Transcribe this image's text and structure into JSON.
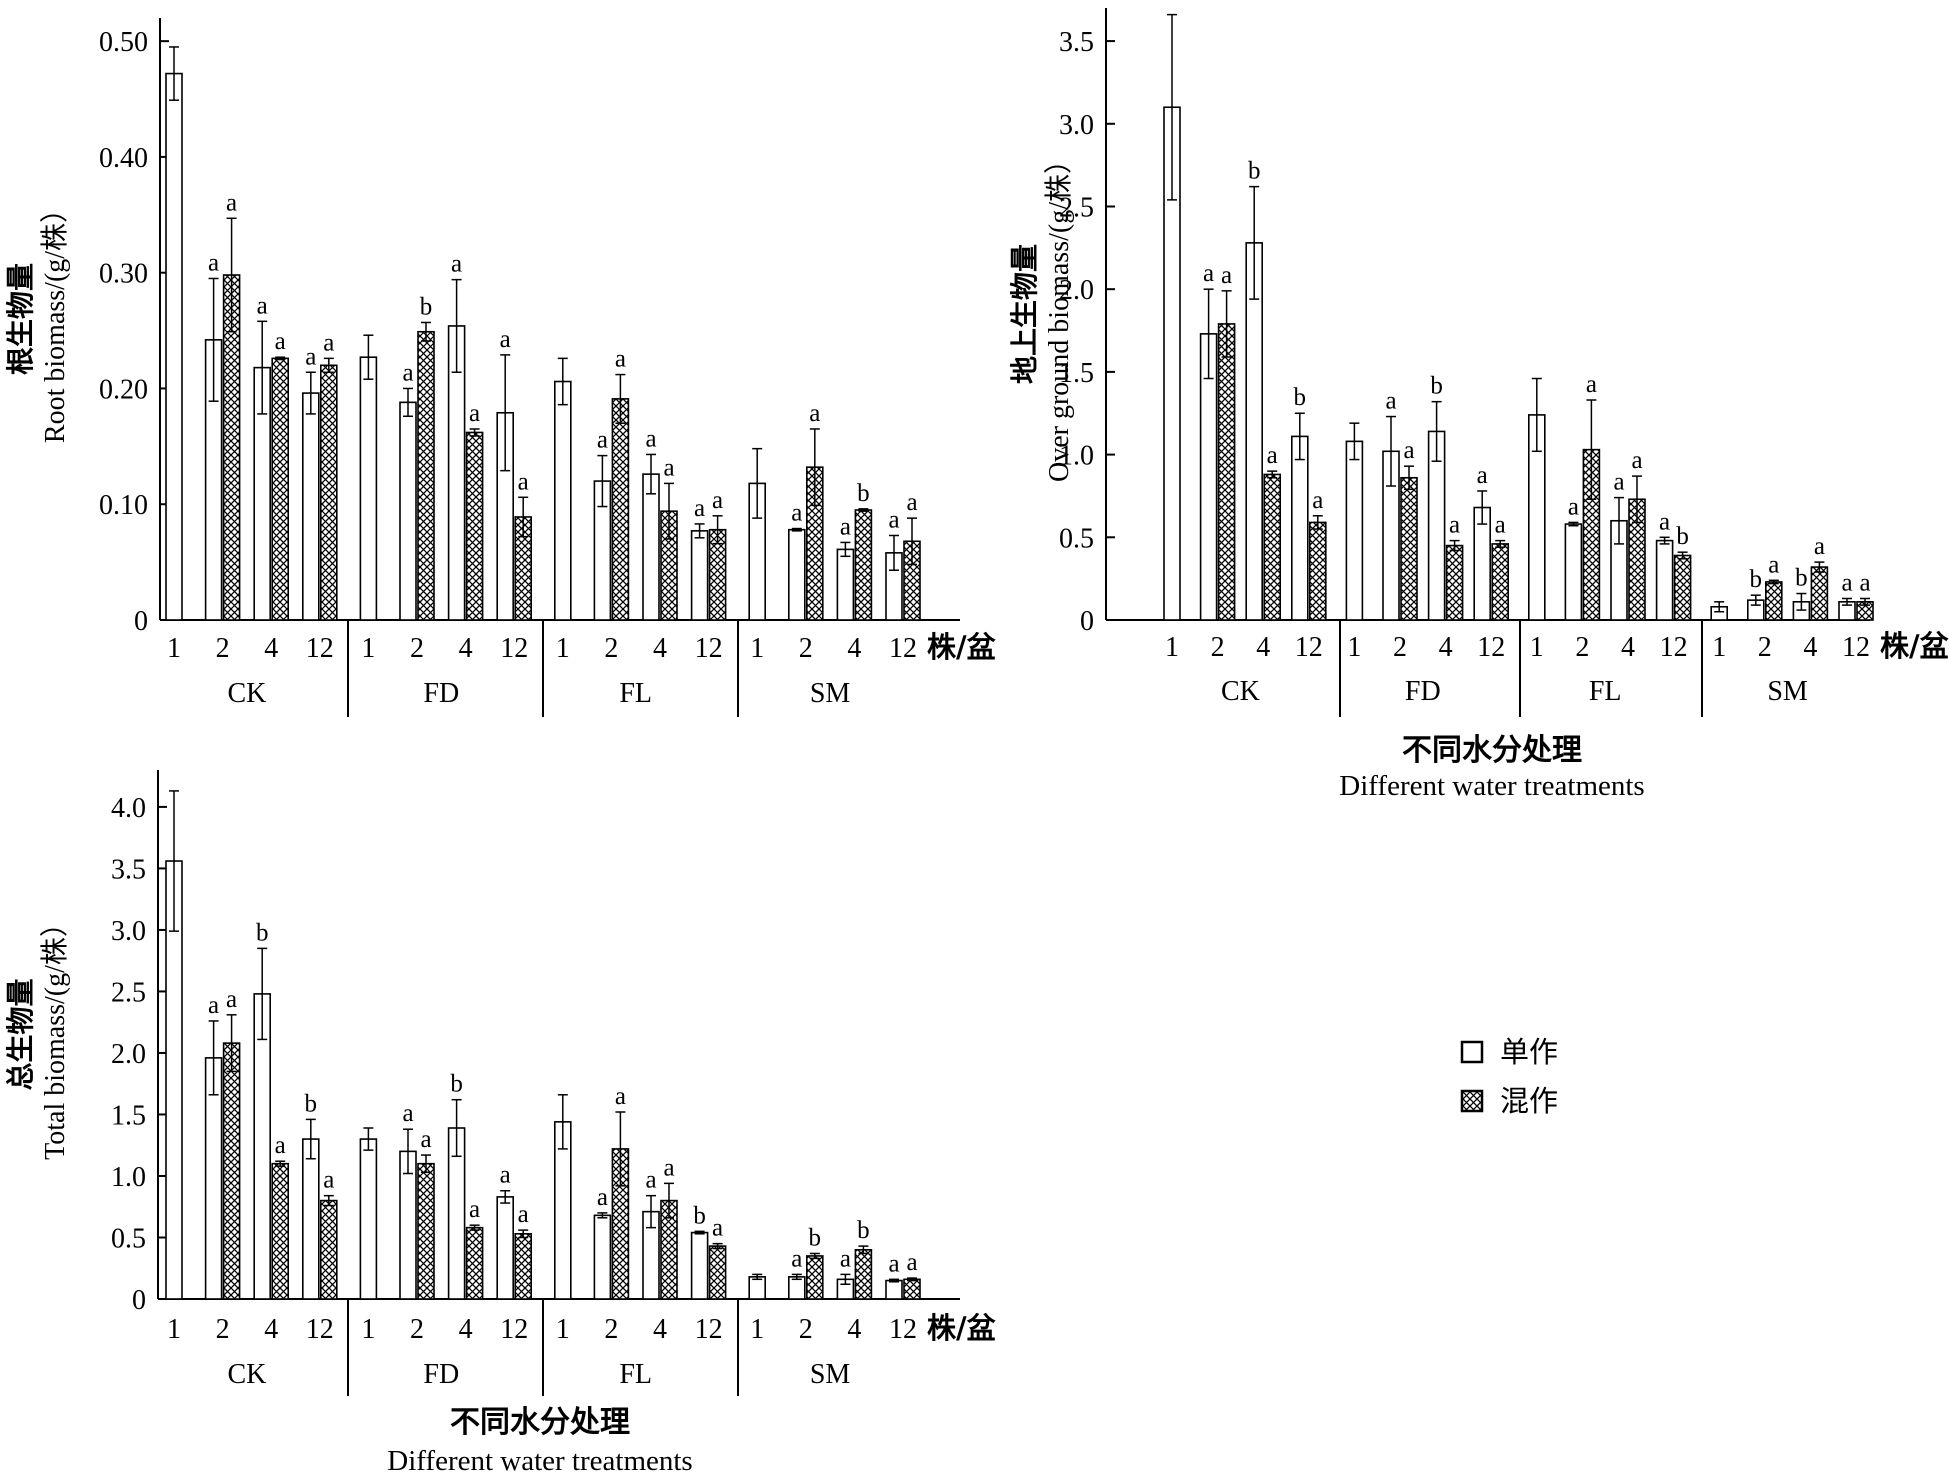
{
  "colors": {
    "axis": "#000000",
    "mono_fill": "#ffffff",
    "mix_pattern": "crosshatch"
  },
  "legend": {
    "mono": "单作",
    "mix": "混作"
  },
  "chart_data": [
    {
      "type": "bar",
      "ylabel_cn": "根生物量",
      "ylabel_en": "Root biomass/(g/株）",
      "ylim": [
        0,
        0.52
      ],
      "yticks": [
        0,
        0.1,
        0.2,
        0.3,
        0.4,
        0.5
      ],
      "ytick_labels": [
        "0",
        "0.10",
        "0.20",
        "0.30",
        "0.40",
        "0.50"
      ],
      "groups": [
        "CK",
        "FD",
        "FL",
        "SM"
      ],
      "densities": [
        "1",
        "2",
        "4",
        "12"
      ],
      "density_unit": "株/盆",
      "xlabel_cn": "",
      "xlabel_en": "",
      "series": [
        {
          "name": "单作",
          "values": [
            0.472,
            0.242,
            0.218,
            0.196,
            0.227,
            0.188,
            0.254,
            0.179,
            0.206,
            0.12,
            0.126,
            0.077,
            0.118,
            0.078,
            0.061,
            0.058
          ],
          "errors": [
            0.023,
            0.053,
            0.04,
            0.018,
            0.019,
            0.012,
            0.04,
            0.05,
            0.02,
            0.022,
            0.017,
            0.006,
            0.03,
            0.001,
            0.006,
            0.015
          ],
          "labels": [
            "",
            "a",
            "a",
            "a",
            "",
            "a",
            "a",
            "a",
            "",
            "a",
            "a",
            "a",
            "",
            "a",
            "a",
            "a"
          ]
        },
        {
          "name": "混作",
          "values": [
            null,
            0.298,
            0.226,
            0.22,
            null,
            0.249,
            0.162,
            0.089,
            null,
            0.191,
            0.094,
            0.078,
            null,
            0.132,
            0.095,
            0.068
          ],
          "errors": [
            null,
            0.049,
            0.001,
            0.006,
            null,
            0.008,
            0.003,
            0.017,
            null,
            0.021,
            0.024,
            0.012,
            null,
            0.033,
            0.001,
            0.02
          ],
          "labels": [
            "",
            "a",
            "a",
            "a",
            "",
            "b",
            "a",
            "a",
            "",
            "a",
            "a",
            "a",
            "",
            "a",
            "b",
            "a"
          ]
        }
      ]
    },
    {
      "type": "bar",
      "ylabel_cn": "地上生物量",
      "ylabel_en": "Over ground biomass/(g/株）",
      "ylim": [
        0,
        3.7
      ],
      "yticks": [
        0,
        0.5,
        1.0,
        1.5,
        2.0,
        2.5,
        3.0,
        3.5
      ],
      "ytick_labels": [
        "0",
        "0.5",
        "1.0",
        "1.5",
        "2.0",
        "2.5",
        "3.0",
        "3.5"
      ],
      "groups": [
        "CK",
        "FD",
        "FL",
        "SM"
      ],
      "densities": [
        "1",
        "2",
        "4",
        "12"
      ],
      "density_unit": "株/盆",
      "xlabel_cn": "不同水分处理",
      "xlabel_en": "Different water treatments",
      "series": [
        {
          "name": "单作",
          "values": [
            3.1,
            1.73,
            2.28,
            1.11,
            1.08,
            1.02,
            1.14,
            0.68,
            1.24,
            0.58,
            0.6,
            0.48,
            0.08,
            0.12,
            0.11,
            0.11
          ],
          "errors": [
            0.56,
            0.27,
            0.34,
            0.14,
            0.11,
            0.21,
            0.18,
            0.1,
            0.22,
            0.01,
            0.14,
            0.02,
            0.03,
            0.03,
            0.05,
            0.02
          ],
          "labels": [
            "",
            "a",
            "b",
            "b",
            "",
            "a",
            "b",
            "a",
            "",
            "a",
            "a",
            "a",
            "",
            "b",
            "b",
            "a"
          ]
        },
        {
          "name": "混作",
          "values": [
            null,
            1.79,
            0.88,
            0.59,
            null,
            0.86,
            0.45,
            0.46,
            null,
            1.03,
            0.73,
            0.39,
            null,
            0.23,
            0.32,
            0.11
          ],
          "errors": [
            null,
            0.2,
            0.02,
            0.04,
            null,
            0.07,
            0.03,
            0.02,
            null,
            0.3,
            0.14,
            0.02,
            null,
            0.01,
            0.03,
            0.02
          ],
          "labels": [
            "",
            "a",
            "a",
            "a",
            "",
            "a",
            "a",
            "a",
            "",
            "a",
            "a",
            "b",
            "",
            "a",
            "a",
            "a"
          ]
        }
      ]
    },
    {
      "type": "bar",
      "ylabel_cn": "总生物量",
      "ylabel_en": "Total biomass/(g/株）",
      "ylim": [
        0,
        4.3
      ],
      "yticks": [
        0,
        0.5,
        1.0,
        1.5,
        2.0,
        2.5,
        3.0,
        3.5,
        4.0
      ],
      "ytick_labels": [
        "0",
        "0.5",
        "1.0",
        "1.5",
        "2.0",
        "2.5",
        "3.0",
        "3.5",
        "4.0"
      ],
      "groups": [
        "CK",
        "FD",
        "FL",
        "SM"
      ],
      "densities": [
        "1",
        "2",
        "4",
        "12"
      ],
      "density_unit": "株/盆",
      "xlabel_cn": "不同水分处理",
      "xlabel_en": "Different water treatments",
      "series": [
        {
          "name": "单作",
          "values": [
            3.56,
            1.96,
            2.48,
            1.3,
            1.3,
            1.2,
            1.39,
            0.83,
            1.44,
            0.68,
            0.71,
            0.54,
            0.18,
            0.18,
            0.16,
            0.15
          ],
          "errors": [
            0.57,
            0.3,
            0.37,
            0.16,
            0.09,
            0.18,
            0.23,
            0.05,
            0.22,
            0.02,
            0.13,
            0.01,
            0.02,
            0.02,
            0.04,
            0.01
          ],
          "labels": [
            "",
            "a",
            "b",
            "b",
            "",
            "a",
            "b",
            "a",
            "",
            "a",
            "a",
            "b",
            "",
            "a",
            "a",
            "a"
          ]
        },
        {
          "name": "混作",
          "values": [
            null,
            2.08,
            1.1,
            0.8,
            null,
            1.1,
            0.58,
            0.53,
            null,
            1.22,
            0.8,
            0.43,
            null,
            0.35,
            0.4,
            0.16
          ],
          "errors": [
            null,
            0.23,
            0.02,
            0.04,
            null,
            0.07,
            0.02,
            0.03,
            null,
            0.3,
            0.14,
            0.02,
            null,
            0.02,
            0.03,
            0.01
          ],
          "labels": [
            "",
            "a",
            "a",
            "a",
            "",
            "a",
            "a",
            "a",
            "",
            "a",
            "a",
            "a",
            "",
            "b",
            "b",
            "a"
          ]
        }
      ]
    }
  ]
}
